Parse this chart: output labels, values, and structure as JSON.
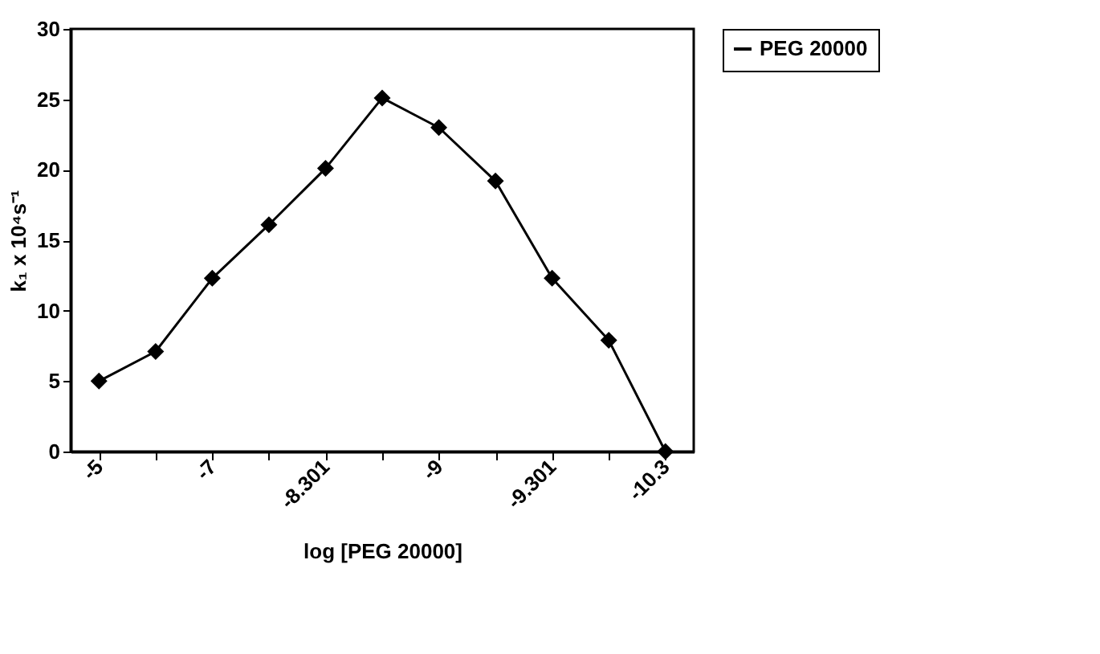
{
  "chart_data": {
    "type": "line",
    "xlabel": "log [PEG 20000]",
    "ylabel": "k₁ x 10⁴s⁻¹",
    "categories": [
      "-5",
      null,
      "-7",
      null,
      "-8.301",
      null,
      "-9",
      null,
      "-9.301",
      null,
      "-10.3"
    ],
    "series": [
      {
        "name": "PEG 20000",
        "color": "#000000",
        "values": [
          5.0,
          7.1,
          12.3,
          16.1,
          20.1,
          25.1,
          23.0,
          19.2,
          12.3,
          7.9,
          0
        ]
      }
    ],
    "ylim": [
      0,
      30
    ],
    "yticks": [
      0,
      5,
      10,
      15,
      20,
      25,
      30
    ],
    "grid": false,
    "legend": "right",
    "marker": "diamond",
    "line_style": "solid"
  }
}
